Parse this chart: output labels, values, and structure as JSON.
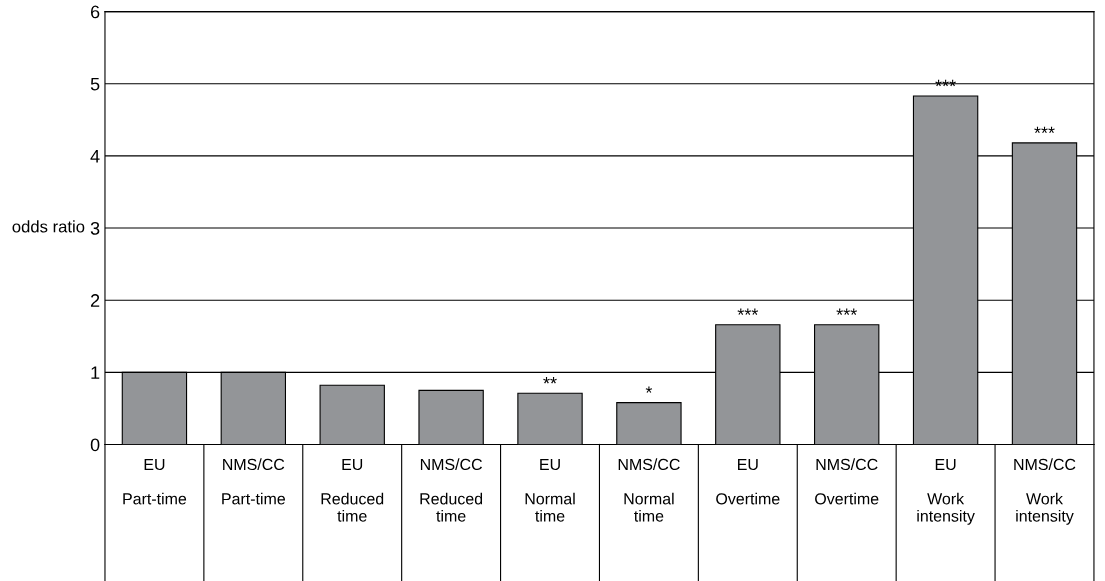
{
  "chart_data": {
    "type": "bar",
    "ylabel": "odds ratio",
    "categories": [
      "EU\n\nPart-time",
      "NMS/CC\n\nPart-time",
      "EU\n\nReduced\ntime",
      "NMS/CC\n\nReduced\ntime",
      "EU\n\nNormal\ntime",
      "NMS/CC\n\nNormal\ntime",
      "EU\n\nOvertime",
      "NMS/CC\n\nOvertime",
      "EU\n\nWork\nintensity",
      "NMS/CC\n\nWork\nintensity"
    ],
    "values": [
      1.0,
      1.0,
      0.82,
      0.75,
      0.71,
      0.58,
      1.66,
      1.66,
      4.83,
      4.18
    ],
    "value_labels": [
      null,
      null,
      null,
      null,
      "**",
      "*",
      "***",
      "***",
      "***",
      "***"
    ],
    "color": "#939598",
    "ylim": [
      0,
      6
    ],
    "yticks": [
      0,
      1,
      2,
      3,
      4,
      5,
      6
    ],
    "grid": "y"
  }
}
